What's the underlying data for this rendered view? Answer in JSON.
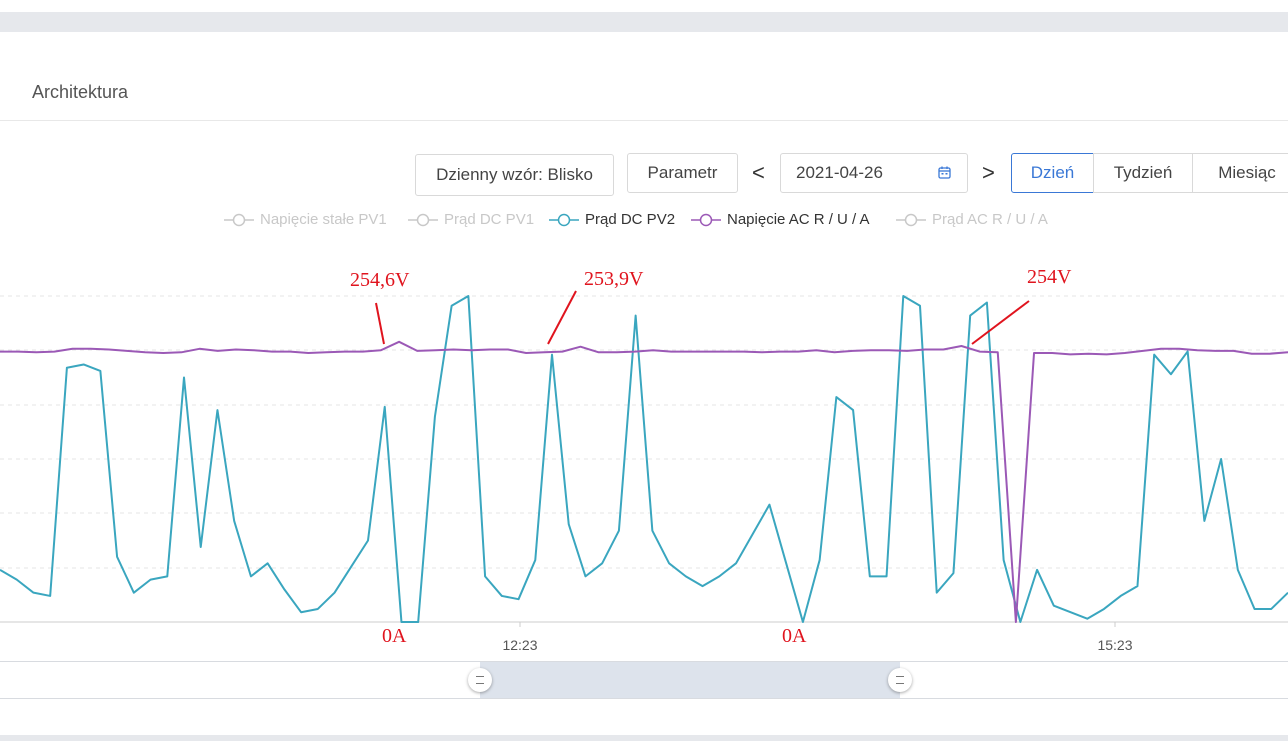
{
  "header": {
    "title": "Architektura"
  },
  "toolbar": {
    "pattern_button": "Dzienny wzór: Blisko",
    "parameter_button": "Parametr",
    "prev_arrow": "<",
    "next_arrow": ">",
    "date_value": "2021-04-26",
    "calendar_icon": "calendar-icon",
    "periods": [
      "Dzień",
      "Tydzień",
      "Miesiąc"
    ],
    "active_period": "Dzień"
  },
  "legend": [
    {
      "label": "Napięcie stałe PV1",
      "color": "#c8c8c8",
      "active": false
    },
    {
      "label": "Prąd DC PV1",
      "color": "#c8c8c8",
      "active": false
    },
    {
      "label": "Prąd DC PV2",
      "color": "#3aa6bf",
      "active": true
    },
    {
      "label": "Napięcie AC R / U / A",
      "color": "#9b59b6",
      "active": true
    },
    {
      "label": "Prąd AC R / U / A",
      "color": "#c8c8c8",
      "active": false
    }
  ],
  "chart_data": {
    "type": "line",
    "x_ticks": [
      "12:23",
      "15:23"
    ],
    "series": [
      {
        "name": "Prąd DC PV2",
        "color": "#3aa6bf",
        "values": [
          0.16,
          0.13,
          0.09,
          0.08,
          0.78,
          0.79,
          0.77,
          0.2,
          0.09,
          0.13,
          0.14,
          0.75,
          0.23,
          0.65,
          0.31,
          0.14,
          0.18,
          0.1,
          0.03,
          0.04,
          0.09,
          0.17,
          0.25,
          0.66,
          0.0,
          0.0,
          0.63,
          0.97,
          1.0,
          0.14,
          0.08,
          0.07,
          0.19,
          0.82,
          0.3,
          0.14,
          0.18,
          0.28,
          0.94,
          0.28,
          0.18,
          0.14,
          0.11,
          0.14,
          0.18,
          0.27,
          0.36,
          0.18,
          0.0,
          0.19,
          0.69,
          0.65,
          0.14,
          0.14,
          1.0,
          0.97,
          0.09,
          0.15,
          0.94,
          0.98,
          0.19,
          0.0,
          0.16,
          0.05,
          0.03,
          0.01,
          0.04,
          0.08,
          0.11,
          0.82,
          0.76,
          0.83,
          0.31,
          0.5,
          0.16,
          0.04,
          0.04,
          0.09
        ]
      },
      {
        "name": "Napięcie AC R / U / A",
        "color": "#9b59b6",
        "values": [
          253.2,
          253.2,
          253.1,
          253.2,
          253.6,
          253.6,
          253.5,
          253.3,
          253.1,
          253.0,
          253.1,
          253.6,
          253.3,
          253.5,
          253.4,
          253.2,
          253.2,
          253.0,
          253.1,
          253.2,
          253.2,
          253.4,
          254.6,
          253.3,
          253.4,
          253.5,
          253.4,
          253.5,
          253.5,
          253.0,
          253.1,
          253.2,
          253.9,
          253.1,
          253.1,
          253.2,
          253.4,
          253.2,
          253.2,
          253.2,
          253.2,
          253.2,
          253.1,
          253.2,
          253.2,
          253.4,
          253.1,
          253.3,
          253.4,
          253.4,
          253.3,
          253.5,
          253.5,
          254.0,
          253.2,
          253.1,
          0.0,
          253.0,
          253.0,
          252.8,
          252.9,
          252.8,
          253.0,
          253.3,
          253.6,
          253.6,
          253.4,
          253.3,
          253.3,
          252.9,
          252.9,
          253.1
        ]
      }
    ],
    "annotations": [
      "254,6V",
      "253,9V",
      "254V",
      "0A",
      "0A"
    ],
    "grid": true
  },
  "zoom": {
    "start": 0.37,
    "end": 0.7
  }
}
